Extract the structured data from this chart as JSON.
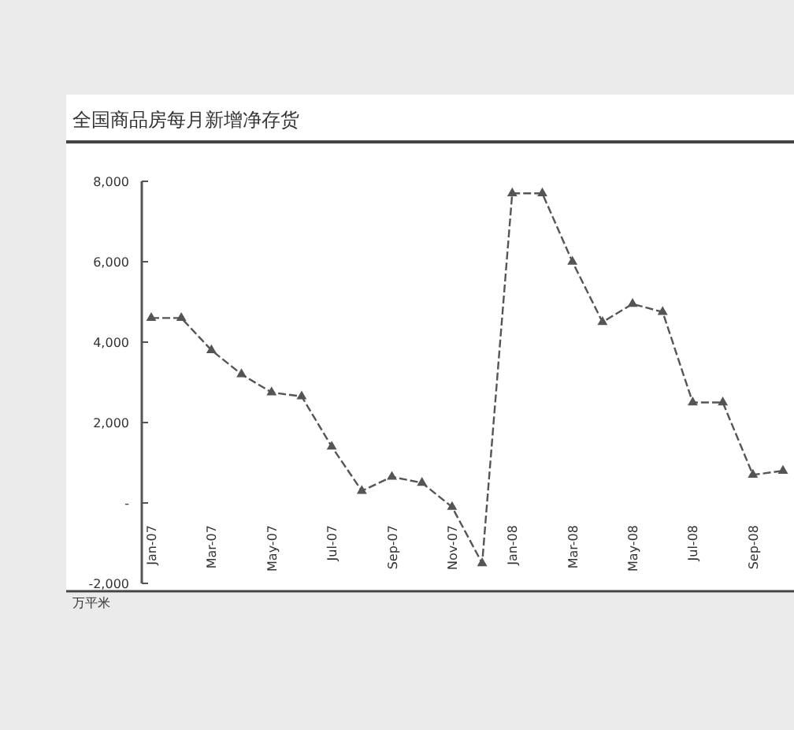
{
  "chart_data": {
    "type": "line",
    "title": "全国商品房每月新增净存货",
    "annotations": [
      "万平米"
    ],
    "categories": [
      "Jan-07",
      null,
      "Mar-07",
      null,
      "May-07",
      null,
      "Jul-07",
      null,
      "Sep-07",
      null,
      "Nov-07",
      null,
      "Jan-08",
      null,
      "Mar-08",
      null,
      "May-08",
      null,
      "Jul-08",
      null,
      "Sep-08",
      null
    ],
    "series": [
      {
        "color": "#555555",
        "values": [
          4600,
          4600,
          3800,
          3200,
          2750,
          2650,
          1400,
          300,
          650,
          500,
          -100,
          -1500,
          7700,
          7700,
          6000,
          4500,
          4950,
          4750,
          2500,
          2500,
          700,
          800
        ]
      }
    ],
    "ylim": [
      -2000,
      8000
    ],
    "yticks": [
      {
        "value": -2000,
        "label": "-2,000"
      },
      {
        "value": 0,
        "label": "-"
      },
      {
        "value": 2000,
        "label": "2,000"
      },
      {
        "value": 4000,
        "label": "4,000"
      },
      {
        "value": 6000,
        "label": "6,000"
      },
      {
        "value": 8000,
        "label": "8,000"
      }
    ],
    "marker": "triangle",
    "line_style": "dashed"
  }
}
